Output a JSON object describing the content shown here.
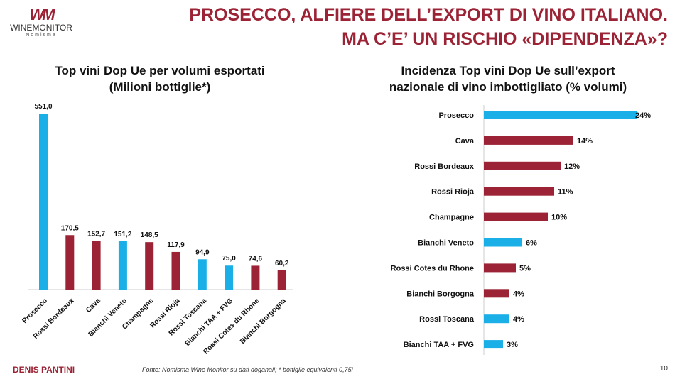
{
  "header": {
    "title_line1": "PROSECCO, ALFIERE DELL’EXPORT DI VINO ITALIANO.",
    "title_line2": "MA C’E’ UN RISCHIO «DIPENDENZA»?"
  },
  "logo": {
    "brand": "WINEMONITOR",
    "sub": "Nomisma"
  },
  "colors": {
    "red": "#9b2335",
    "blue": "#1aafe6"
  },
  "chart_data": [
    {
      "type": "bar",
      "title_line1": "Top vini Dop Ue per volumi esportati",
      "title_line2": "(Milioni bottiglie*)",
      "categories": [
        "Prosecco",
        "Rossi Bordeaux",
        "Cava",
        "Bianchi Veneto",
        "Champagne",
        "Rossi Rioja",
        "Rossi Toscana",
        "Bianchi TAA + FVG",
        "Rossi Cotes du Rhone",
        "Bianchi Borgogna"
      ],
      "values": [
        551.0,
        170.5,
        152.7,
        151.2,
        148.5,
        117.9,
        94.9,
        75.0,
        74.6,
        60.2
      ],
      "labels": [
        "551,0",
        "170,5",
        "152,7",
        "151,2",
        "148,5",
        "117,9",
        "94,9",
        "75,0",
        "74,6",
        "60,2"
      ],
      "colors": [
        "blue",
        "red",
        "red",
        "blue",
        "red",
        "red",
        "blue",
        "blue",
        "red",
        "red"
      ],
      "ylim": [
        0,
        551
      ]
    },
    {
      "type": "bar",
      "orientation": "horizontal",
      "title_line1": "Incidenza Top vini Dop Ue sull’export",
      "title_line2": "nazionale di vino imbottigliato (% volumi)",
      "categories": [
        "Prosecco",
        "Cava",
        "Rossi Bordeaux",
        "Rossi Rioja",
        "Champagne",
        "Bianchi Veneto",
        "Rossi Cotes du Rhone",
        "Bianchi Borgogna",
        "Rossi Toscana",
        "Bianchi TAA + FVG"
      ],
      "values": [
        24,
        14,
        12,
        11,
        10,
        6,
        5,
        4,
        4,
        3
      ],
      "labels": [
        "24%",
        "14%",
        "12%",
        "11%",
        "10%",
        "6%",
        "5%",
        "4%",
        "4%",
        "3%"
      ],
      "colors": [
        "blue",
        "red",
        "red",
        "red",
        "red",
        "blue",
        "red",
        "red",
        "blue",
        "blue"
      ],
      "xlim": [
        0,
        24
      ]
    }
  ],
  "footer": {
    "author": "DENIS PANTINI",
    "source": "Fonte: Nomisma Wine Monitor su dati doganali; * bottiglie equivalenti 0,75l",
    "page": "10"
  }
}
